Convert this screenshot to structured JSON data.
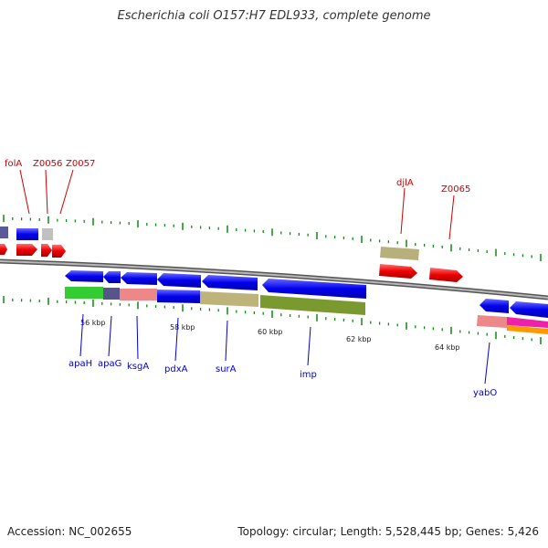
{
  "title": "Escherichia coli O157:H7 EDL933, complete genome",
  "footer": {
    "accession": "Accession: NC_002655",
    "summary": "Topology: circular; Length: 5,528,445 bp; Genes: 5,426"
  },
  "colors": {
    "backbone": "#808080",
    "tick": "#118811",
    "upper_label": "#cc0000",
    "lower_label": "#0000cc"
  },
  "scale_ticks": [
    "56 kbp",
    "58 kbp",
    "60 kbp",
    "62 kbp",
    "64 kbp"
  ],
  "upper_labels": [
    "folA",
    "Z0056",
    "Z0057",
    "djlA",
    "Z0065"
  ],
  "lower_labels": [
    "apaH",
    "apaG",
    "ksgA",
    "pdxA",
    "surA",
    "imp",
    "yabO"
  ]
}
